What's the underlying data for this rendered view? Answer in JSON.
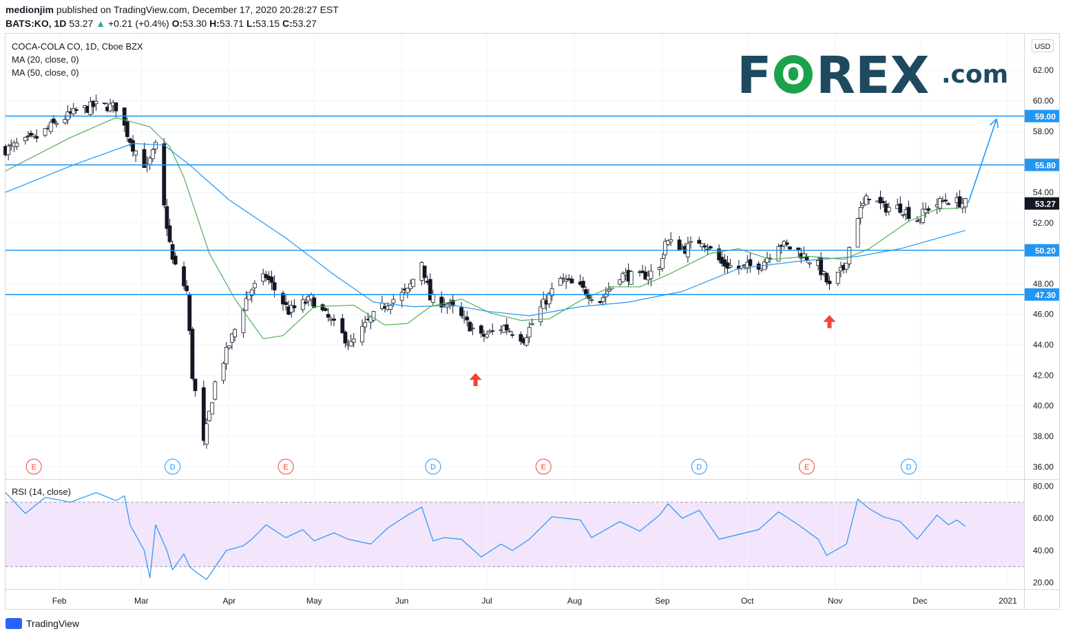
{
  "header": {
    "author": "medionjim",
    "published": "published on TradingView.com, December 17, 2020 20:28:27 EST",
    "symbol": "BATS:KO, 1D",
    "last": "53.27",
    "change": "+0.21 (+0.4%)",
    "o_label": "O:",
    "o_value": "53.30",
    "h_label": "H:",
    "h_value": "53.71",
    "l_label": "L:",
    "l_value": "53.15",
    "c_label": "C:",
    "c_value": "53.27"
  },
  "legend": {
    "title": "COCA-COLA CO, 1D, Cboe BZX",
    "ma20": "MA (20, close, 0)",
    "ma50": "MA (50, close, 0)",
    "rsi": "RSI (14, close)"
  },
  "currency": "USD",
  "logo": {
    "text_left": "F",
    "text_o": "O",
    "text_right": "REX",
    "suffix": ".com",
    "color": "#1e4a5f",
    "accent": "#1aa34a"
  },
  "footer": {
    "brand": "TradingView"
  },
  "colors": {
    "level_line": "#2196f3",
    "ma20": "#4caf50",
    "ma50": "#2196f3",
    "rsi": "#2196f3",
    "rsi_band": "#f3e5fb",
    "arrow": "#f44336",
    "price_tag": "#131722"
  },
  "chart_data": [
    {
      "type": "candlestick",
      "title": "COCA-COLA CO, 1D, Cboe BZX",
      "ylim": [
        35.2,
        64.4
      ],
      "y_ticks": [
        "36.00",
        "38.00",
        "40.00",
        "42.00",
        "44.00",
        "46.00",
        "48.00",
        "50.00",
        "52.00",
        "54.00",
        "56.00",
        "58.00",
        "60.00",
        "62.00"
      ],
      "x_ticks": [
        "Feb",
        "Mar",
        "Apr",
        "May",
        "Jun",
        "Jul",
        "Aug",
        "Sep",
        "Oct",
        "Nov",
        "Dec",
        "2021"
      ],
      "x_tick_dates": [
        "2020-02-01",
        "2020-03-01",
        "2020-04-01",
        "2020-05-01",
        "2020-06-01",
        "2020-07-01",
        "2020-08-01",
        "2020-09-01",
        "2020-10-01",
        "2020-11-01",
        "2020-12-01",
        "2021-01-01"
      ],
      "x_range": [
        "2020-01-13",
        "2021-01-05"
      ],
      "levels": [
        {
          "value": 59.0,
          "label": "59.00"
        },
        {
          "value": 55.8,
          "label": "55.80"
        },
        {
          "value": 50.2,
          "label": "50.20"
        },
        {
          "value": 47.3,
          "label": "47.30"
        }
      ],
      "last_price": {
        "value": 53.27,
        "label": "53.27"
      },
      "projection_arrow": {
        "from": [
          "2020-12-18",
          53.3
        ],
        "to": [
          "2020-12-28",
          58.8
        ]
      },
      "up_arrows": [
        {
          "date": "2020-06-27",
          "price": 41.7
        },
        {
          "date": "2020-10-30",
          "price": 45.5
        }
      ],
      "events": [
        {
          "date": "2020-01-23",
          "label": "E"
        },
        {
          "date": "2020-03-12",
          "label": "D"
        },
        {
          "date": "2020-04-21",
          "label": "E"
        },
        {
          "date": "2020-06-12",
          "label": "D"
        },
        {
          "date": "2020-07-21",
          "label": "E"
        },
        {
          "date": "2020-09-14",
          "label": "D"
        },
        {
          "date": "2020-10-22",
          "label": "E"
        },
        {
          "date": "2020-11-27",
          "label": "D"
        }
      ],
      "anchors": [
        [
          "2020-01-13",
          56.8
        ],
        [
          "2020-01-24",
          57.6
        ],
        [
          "2020-01-31",
          58.6
        ],
        [
          "2020-02-07",
          59.3
        ],
        [
          "2020-02-14",
          59.7
        ],
        [
          "2020-02-21",
          59.6
        ],
        [
          "2020-02-27",
          57.0
        ],
        [
          "2020-03-03",
          55.6
        ],
        [
          "2020-03-06",
          57.0
        ],
        [
          "2020-03-09",
          53.0
        ],
        [
          "2020-03-12",
          49.5
        ],
        [
          "2020-03-17",
          47.5
        ],
        [
          "2020-03-19",
          42.0
        ],
        [
          "2020-03-23",
          37.5
        ],
        [
          "2020-03-27",
          41.5
        ],
        [
          "2020-04-01",
          44.0
        ],
        [
          "2020-04-08",
          47.5
        ],
        [
          "2020-04-14",
          48.5
        ],
        [
          "2020-04-22",
          46.2
        ],
        [
          "2020-04-30",
          47.0
        ],
        [
          "2020-05-07",
          45.5
        ],
        [
          "2020-05-14",
          44.0
        ],
        [
          "2020-05-20",
          45.5
        ],
        [
          "2020-05-27",
          46.8
        ],
        [
          "2020-06-03",
          47.5
        ],
        [
          "2020-06-08",
          49.5
        ],
        [
          "2020-06-11",
          47.0
        ],
        [
          "2020-06-17",
          46.7
        ],
        [
          "2020-06-24",
          45.4
        ],
        [
          "2020-06-29",
          44.5
        ],
        [
          "2020-07-07",
          45.2
        ],
        [
          "2020-07-14",
          44.4
        ],
        [
          "2020-07-20",
          46.4
        ],
        [
          "2020-07-27",
          48.3
        ],
        [
          "2020-08-03",
          47.7
        ],
        [
          "2020-08-10",
          46.9
        ],
        [
          "2020-08-17",
          48.6
        ],
        [
          "2020-08-24",
          48.4
        ],
        [
          "2020-08-31",
          49.0
        ],
        [
          "2020-09-02",
          50.8
        ],
        [
          "2020-09-09",
          50.3
        ],
        [
          "2020-09-15",
          50.9
        ],
        [
          "2020-09-22",
          49.3
        ],
        [
          "2020-09-28",
          49.0
        ],
        [
          "2020-10-06",
          49.3
        ],
        [
          "2020-10-12",
          50.7
        ],
        [
          "2020-10-19",
          50.1
        ],
        [
          "2020-10-26",
          49.2
        ],
        [
          "2020-10-30",
          47.8
        ],
        [
          "2020-11-04",
          49.0
        ],
        [
          "2020-11-09",
          52.5
        ],
        [
          "2020-11-13",
          53.8
        ],
        [
          "2020-11-18",
          53.0
        ],
        [
          "2020-11-24",
          53.0
        ],
        [
          "2020-11-30",
          52.2
        ],
        [
          "2020-12-04",
          53.0
        ],
        [
          "2020-12-10",
          53.5
        ],
        [
          "2020-12-17",
          53.27
        ]
      ],
      "ma20_anchors": [
        [
          "2020-01-13",
          55.4
        ],
        [
          "2020-02-05",
          57.6
        ],
        [
          "2020-02-21",
          58.9
        ],
        [
          "2020-03-04",
          58.3
        ],
        [
          "2020-03-11",
          57.0
        ],
        [
          "2020-03-16",
          55.0
        ],
        [
          "2020-03-25",
          50.0
        ],
        [
          "2020-04-03",
          47.0
        ],
        [
          "2020-04-13",
          44.4
        ],
        [
          "2020-04-20",
          44.6
        ],
        [
          "2020-05-01",
          46.5
        ],
        [
          "2020-05-15",
          46.6
        ],
        [
          "2020-05-26",
          45.3
        ],
        [
          "2020-06-03",
          45.4
        ],
        [
          "2020-06-11",
          46.5
        ],
        [
          "2020-06-22",
          47.0
        ],
        [
          "2020-07-02",
          46.1
        ],
        [
          "2020-07-13",
          45.6
        ],
        [
          "2020-07-23",
          45.7
        ],
        [
          "2020-08-03",
          46.9
        ],
        [
          "2020-08-14",
          47.8
        ],
        [
          "2020-08-24",
          47.8
        ],
        [
          "2020-09-03",
          48.6
        ],
        [
          "2020-09-18",
          50.0
        ],
        [
          "2020-09-28",
          50.3
        ],
        [
          "2020-10-09",
          49.6
        ],
        [
          "2020-10-23",
          49.8
        ],
        [
          "2020-11-04",
          49.6
        ],
        [
          "2020-11-13",
          50.3
        ],
        [
          "2020-11-27",
          52.1
        ],
        [
          "2020-12-07",
          52.9
        ],
        [
          "2020-12-17",
          53.0
        ]
      ],
      "ma50_anchors": [
        [
          "2020-01-13",
          54.0
        ],
        [
          "2020-02-06",
          55.8
        ],
        [
          "2020-02-27",
          57.2
        ],
        [
          "2020-03-09",
          57.1
        ],
        [
          "2020-03-18",
          55.8
        ],
        [
          "2020-04-01",
          53.5
        ],
        [
          "2020-04-21",
          51.0
        ],
        [
          "2020-05-08",
          48.6
        ],
        [
          "2020-05-22",
          46.8
        ],
        [
          "2020-06-05",
          46.5
        ],
        [
          "2020-06-19",
          46.6
        ],
        [
          "2020-07-01",
          46.2
        ],
        [
          "2020-07-16",
          45.9
        ],
        [
          "2020-08-03",
          46.5
        ],
        [
          "2020-08-20",
          46.8
        ],
        [
          "2020-09-08",
          47.5
        ],
        [
          "2020-09-28",
          49.0
        ],
        [
          "2020-10-20",
          49.5
        ],
        [
          "2020-11-09",
          49.8
        ],
        [
          "2020-11-24",
          50.3
        ],
        [
          "2020-12-17",
          51.5
        ]
      ]
    },
    {
      "type": "line",
      "title": "RSI (14, close)",
      "ylim": [
        16,
        84
      ],
      "y_ticks": [
        "20.00",
        "40.00",
        "60.00",
        "80.00"
      ],
      "band": [
        30,
        70
      ],
      "anchors": [
        [
          "2020-01-13",
          76
        ],
        [
          "2020-01-20",
          63
        ],
        [
          "2020-01-27",
          73
        ],
        [
          "2020-02-05",
          70
        ],
        [
          "2020-02-14",
          76
        ],
        [
          "2020-02-21",
          71
        ],
        [
          "2020-02-24",
          74
        ],
        [
          "2020-02-26",
          56
        ],
        [
          "2020-03-02",
          40
        ],
        [
          "2020-03-04",
          23
        ],
        [
          "2020-03-06",
          56
        ],
        [
          "2020-03-10",
          40
        ],
        [
          "2020-03-12",
          28
        ],
        [
          "2020-03-16",
          38
        ],
        [
          "2020-03-18",
          30
        ],
        [
          "2020-03-20",
          27
        ],
        [
          "2020-03-24",
          22
        ],
        [
          "2020-03-31",
          40
        ],
        [
          "2020-04-06",
          43
        ],
        [
          "2020-04-09",
          47
        ],
        [
          "2020-04-14",
          56
        ],
        [
          "2020-04-21",
          48
        ],
        [
          "2020-04-27",
          53
        ],
        [
          "2020-05-01",
          46
        ],
        [
          "2020-05-08",
          51
        ],
        [
          "2020-05-13",
          47
        ],
        [
          "2020-05-21",
          44
        ],
        [
          "2020-05-27",
          54
        ],
        [
          "2020-06-03",
          62
        ],
        [
          "2020-06-08",
          67
        ],
        [
          "2020-06-12",
          46
        ],
        [
          "2020-06-16",
          48
        ],
        [
          "2020-06-22",
          47
        ],
        [
          "2020-06-29",
          36
        ],
        [
          "2020-07-06",
          44
        ],
        [
          "2020-07-10",
          40
        ],
        [
          "2020-07-16",
          47
        ],
        [
          "2020-07-24",
          61
        ],
        [
          "2020-08-03",
          59
        ],
        [
          "2020-08-07",
          48
        ],
        [
          "2020-08-17",
          58
        ],
        [
          "2020-08-24",
          52
        ],
        [
          "2020-08-31",
          62
        ],
        [
          "2020-09-03",
          69
        ],
        [
          "2020-09-08",
          60
        ],
        [
          "2020-09-14",
          65
        ],
        [
          "2020-09-21",
          47
        ],
        [
          "2020-09-28",
          50
        ],
        [
          "2020-10-05",
          53
        ],
        [
          "2020-10-12",
          64
        ],
        [
          "2020-10-19",
          56
        ],
        [
          "2020-10-26",
          47
        ],
        [
          "2020-10-29",
          37
        ],
        [
          "2020-11-05",
          44
        ],
        [
          "2020-11-09",
          72
        ],
        [
          "2020-11-13",
          66
        ],
        [
          "2020-11-18",
          61
        ],
        [
          "2020-11-24",
          58
        ],
        [
          "2020-11-30",
          47
        ],
        [
          "2020-12-07",
          62
        ],
        [
          "2020-12-11",
          56
        ],
        [
          "2020-12-14",
          59
        ],
        [
          "2020-12-17",
          55
        ]
      ]
    }
  ]
}
